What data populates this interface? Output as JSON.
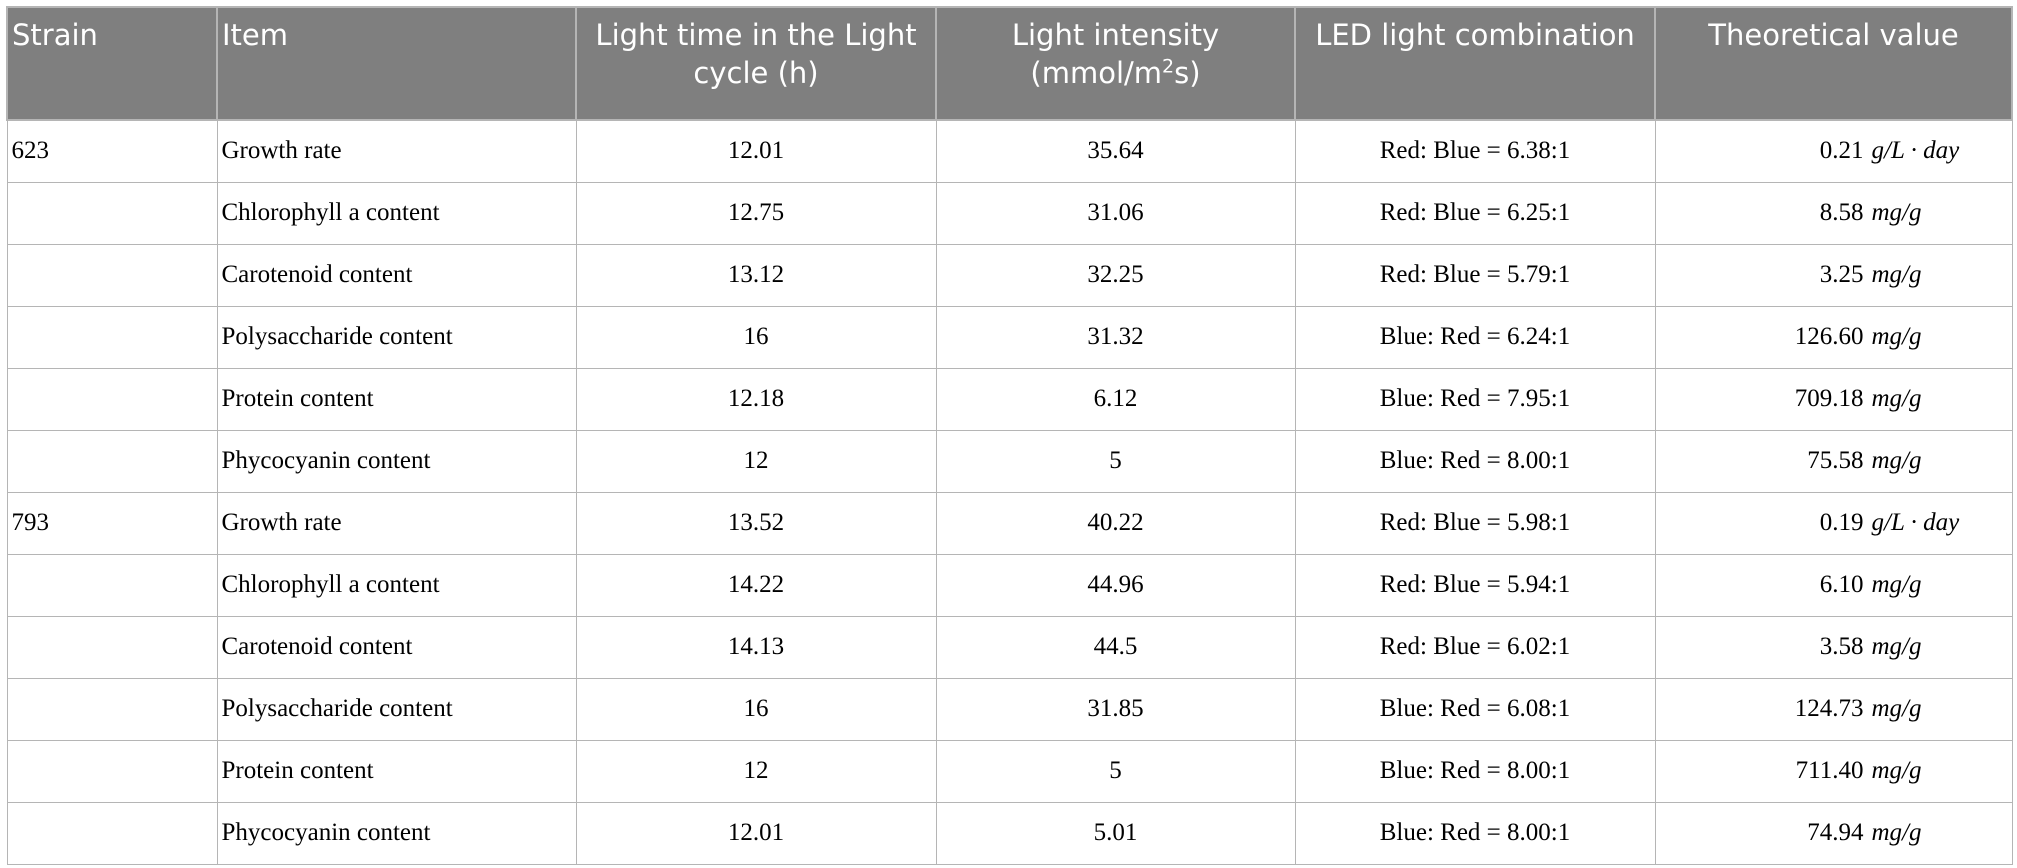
{
  "table": {
    "headers": [
      {
        "parts": [
          "Strain"
        ]
      },
      {
        "parts": [
          "Item"
        ]
      },
      {
        "parts": [
          "Light time in the Light cycle (h)"
        ]
      },
      {
        "parts": [
          "Light intensity (mmol/m",
          "2",
          "s)"
        ]
      },
      {
        "parts": [
          "LED light combination"
        ]
      },
      {
        "parts": [
          "Theoretical value"
        ]
      }
    ],
    "rows": [
      {
        "strain": "623",
        "item": "Growth rate",
        "time": "12.01",
        "intensity": "35.64",
        "led": "Red: Blue = 6.38:1",
        "value": "0.21",
        "unit": "g/L · day"
      },
      {
        "strain": null,
        "item": "Chlorophyll a content",
        "time": "12.75",
        "intensity": "31.06",
        "led": "Red: Blue = 6.25:1",
        "value": "8.58",
        "unit": "mg/g"
      },
      {
        "strain": null,
        "item": "Carotenoid content",
        "time": "13.12",
        "intensity": "32.25",
        "led": "Red: Blue = 5.79:1",
        "value": "3.25",
        "unit": "mg/g"
      },
      {
        "strain": null,
        "item": "Polysaccharide content",
        "time": "16",
        "intensity": "31.32",
        "led": "Blue: Red = 6.24:1",
        "value": "126.60",
        "unit": "mg/g"
      },
      {
        "strain": null,
        "item": "Protein content",
        "time": "12.18",
        "intensity": "6.12",
        "led": "Blue: Red = 7.95:1",
        "value": "709.18",
        "unit": "mg/g"
      },
      {
        "strain": null,
        "item": "Phycocyanin content",
        "time": "12",
        "intensity": "5",
        "led": "Blue: Red = 8.00:1",
        "value": "75.58",
        "unit": "mg/g"
      },
      {
        "strain": "793",
        "item": "Growth rate",
        "time": "13.52",
        "intensity": "40.22",
        "led": "Red: Blue = 5.98:1",
        "value": "0.19",
        "unit": "g/L · day"
      },
      {
        "strain": null,
        "item": "Chlorophyll a content",
        "time": "14.22",
        "intensity": "44.96",
        "led": "Red: Blue = 5.94:1",
        "value": "6.10",
        "unit": "mg/g"
      },
      {
        "strain": null,
        "item": "Carotenoid content",
        "time": "14.13",
        "intensity": "44.5",
        "led": "Red: Blue = 6.02:1",
        "value": "3.58",
        "unit": "mg/g"
      },
      {
        "strain": null,
        "item": "Polysaccharide content",
        "time": "16",
        "intensity": "31.85",
        "led": "Blue: Red = 6.08:1",
        "value": "124.73",
        "unit": "mg/g"
      },
      {
        "strain": null,
        "item": "Protein content",
        "time": "12",
        "intensity": "5",
        "led": "Blue: Red = 8.00:1",
        "value": "711.40",
        "unit": "mg/g"
      },
      {
        "strain": null,
        "item": "Phycocyanin content",
        "time": "12.01",
        "intensity": "5.01",
        "led": "Blue: Red = 8.00:1",
        "value": "74.94",
        "unit": "mg/g"
      }
    ]
  }
}
